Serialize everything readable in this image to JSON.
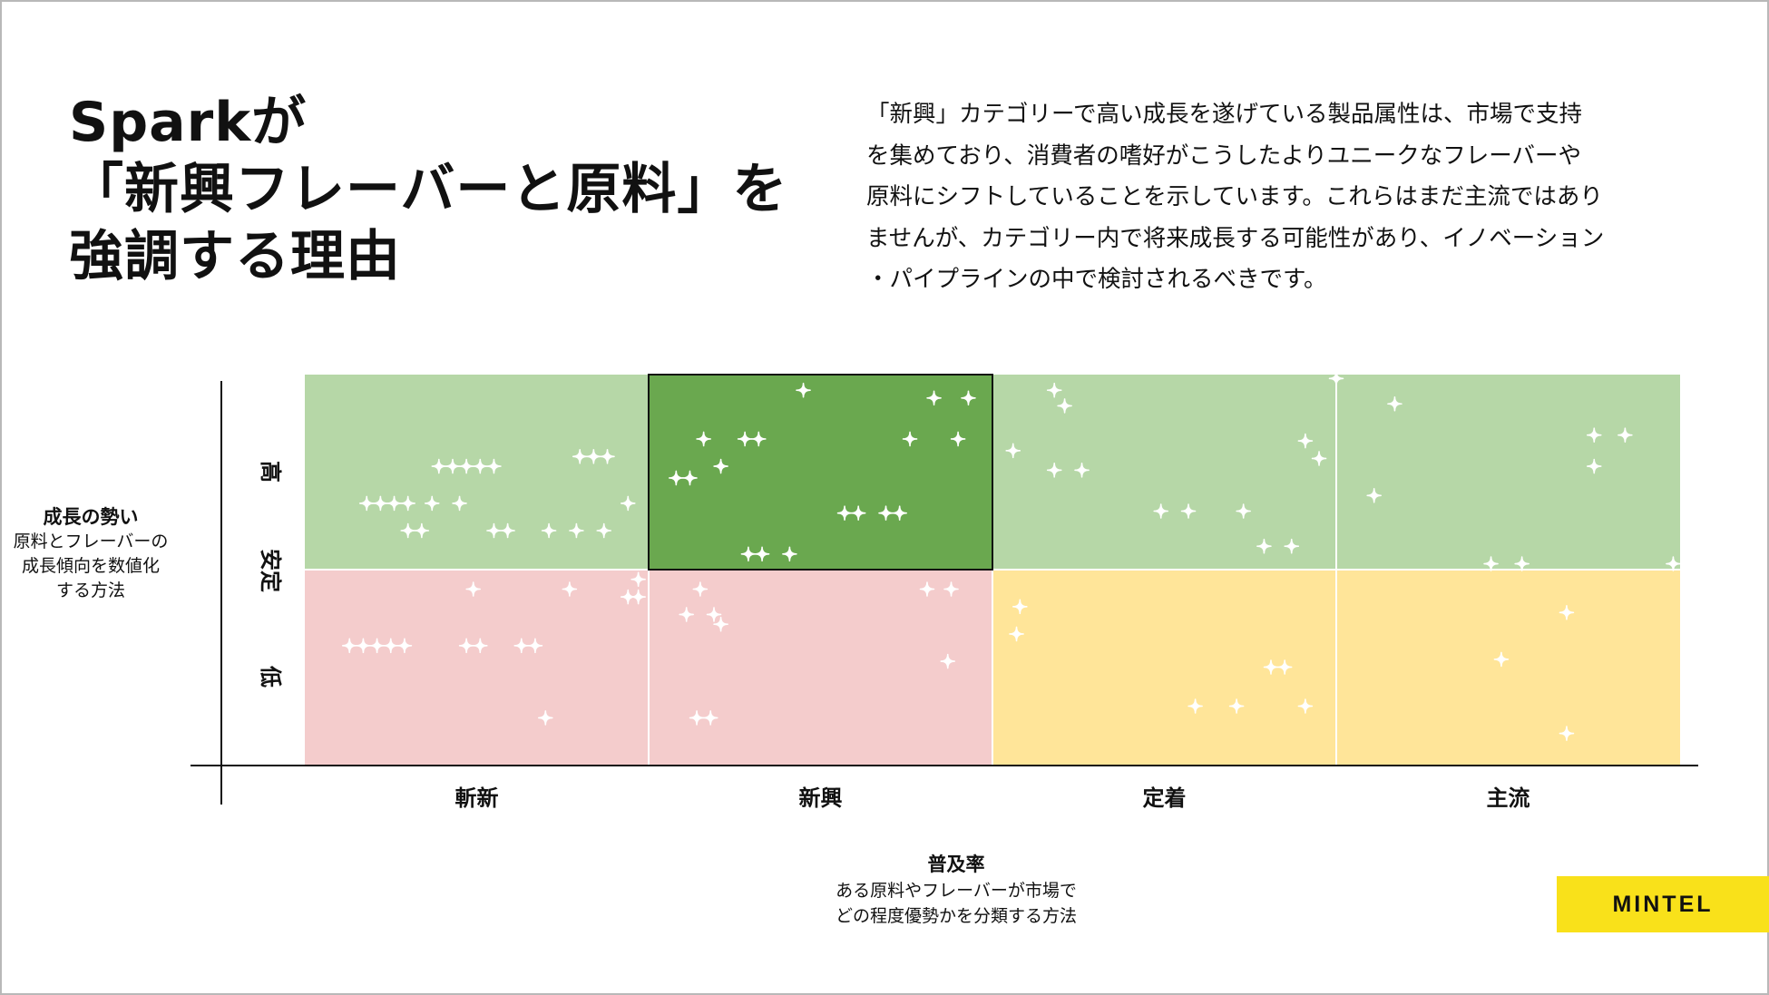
{
  "title_lines": [
    "Sparkが",
    "「新興フレーバーと原料」を",
    "強調する理由"
  ],
  "description": "「新興」カテゴリーで高い成長を遂げている製品属性は、市場で支持\nを集めており、消費者の嗜好がこうしたよりユニークなフレーバーや\n原料にシフトしていることを示しています。これらはまだ主流ではあり\nませんが、カテゴリー内で将来成長する可能性があり、イノベーション\n・パイプラインの中で検討されるべきです。",
  "brand": {
    "label": "MINTEL",
    "color": "#f9e11a"
  },
  "chart_data": {
    "type": "scatter",
    "x_title": "普及率",
    "x_subtitle": "ある原料やフレーバーが市場で\nどの程度優勢かを分類する方法",
    "y_title": "成長の勢い",
    "y_subtitle": "原料とフレーバーの\n成長傾向を数値化\nする方法",
    "x_categories": [
      "斬新",
      "新興",
      "定着",
      "主流"
    ],
    "y_labels": [
      "高",
      "安定",
      "低"
    ],
    "y_groups": [
      "高",
      "低"
    ],
    "highlight_quadrant": {
      "x": "新興",
      "y": "高"
    },
    "colors": {
      "high_green": "#b6d7a7",
      "highlight_green": "#6aa84f",
      "low_red": "#f4cccc",
      "low_yellow": "#ffe599",
      "marker": "#ffffff"
    },
    "quadrant_fill": {
      "斬新|高": "high_green",
      "新興|高": "highlight_green",
      "定着|高": "high_green",
      "主流|高": "high_green",
      "斬新|低": "low_red",
      "新興|低": "low_red",
      "定着|低": "low_yellow",
      "主流|低": "low_yellow"
    },
    "points": [
      {
        "x": 0.39,
        "y": 0.53
      },
      {
        "x": 0.43,
        "y": 0.53
      },
      {
        "x": 0.47,
        "y": 0.53
      },
      {
        "x": 0.51,
        "y": 0.53
      },
      {
        "x": 0.55,
        "y": 0.53
      },
      {
        "x": 0.8,
        "y": 0.58
      },
      {
        "x": 0.84,
        "y": 0.58
      },
      {
        "x": 0.88,
        "y": 0.58
      },
      {
        "x": 0.18,
        "y": 0.34
      },
      {
        "x": 0.22,
        "y": 0.34
      },
      {
        "x": 0.26,
        "y": 0.34
      },
      {
        "x": 0.3,
        "y": 0.34
      },
      {
        "x": 0.37,
        "y": 0.34
      },
      {
        "x": 0.45,
        "y": 0.34
      },
      {
        "x": 0.94,
        "y": 0.34
      },
      {
        "x": 0.3,
        "y": 0.2
      },
      {
        "x": 0.34,
        "y": 0.2
      },
      {
        "x": 0.55,
        "y": 0.2
      },
      {
        "x": 0.59,
        "y": 0.2
      },
      {
        "x": 0.71,
        "y": 0.2
      },
      {
        "x": 0.79,
        "y": 0.2
      },
      {
        "x": 0.87,
        "y": 0.2
      },
      {
        "x": 1.45,
        "y": 0.92
      },
      {
        "x": 1.83,
        "y": 0.88
      },
      {
        "x": 1.93,
        "y": 0.88
      },
      {
        "x": 1.16,
        "y": 0.67
      },
      {
        "x": 1.28,
        "y": 0.67
      },
      {
        "x": 1.32,
        "y": 0.67
      },
      {
        "x": 1.76,
        "y": 0.67
      },
      {
        "x": 1.9,
        "y": 0.67
      },
      {
        "x": 1.21,
        "y": 0.53
      },
      {
        "x": 1.08,
        "y": 0.47
      },
      {
        "x": 1.12,
        "y": 0.47
      },
      {
        "x": 1.57,
        "y": 0.29
      },
      {
        "x": 1.61,
        "y": 0.29
      },
      {
        "x": 1.69,
        "y": 0.29
      },
      {
        "x": 1.73,
        "y": 0.29
      },
      {
        "x": 1.29,
        "y": 0.08
      },
      {
        "x": 1.33,
        "y": 0.08
      },
      {
        "x": 1.41,
        "y": 0.08
      },
      {
        "x": 2.18,
        "y": 0.92
      },
      {
        "x": 2.21,
        "y": 0.84
      },
      {
        "x": 2.06,
        "y": 0.61
      },
      {
        "x": 2.18,
        "y": 0.51
      },
      {
        "x": 2.26,
        "y": 0.51
      },
      {
        "x": 2.49,
        "y": 0.3
      },
      {
        "x": 2.57,
        "y": 0.3
      },
      {
        "x": 2.73,
        "y": 0.3
      },
      {
        "x": 2.79,
        "y": 0.12
      },
      {
        "x": 2.87,
        "y": 0.12
      },
      {
        "x": 2.91,
        "y": 0.66
      },
      {
        "x": 2.95,
        "y": 0.57
      },
      {
        "x": 3.0,
        "y": 0.98
      },
      {
        "x": 3.17,
        "y": 0.85
      },
      {
        "x": 3.11,
        "y": 0.38
      },
      {
        "x": 3.45,
        "y": 0.03
      },
      {
        "x": 3.54,
        "y": 0.03
      },
      {
        "x": 3.75,
        "y": 0.69
      },
      {
        "x": 3.75,
        "y": 0.53
      },
      {
        "x": 3.84,
        "y": 0.69
      },
      {
        "x": 3.98,
        "y": 0.03
      },
      {
        "x": 0.49,
        "y": -0.1
      },
      {
        "x": 0.77,
        "y": -0.1
      },
      {
        "x": 0.94,
        "y": -0.14
      },
      {
        "x": 0.97,
        "y": -0.14
      },
      {
        "x": 0.97,
        "y": -0.05
      },
      {
        "x": 0.13,
        "y": -0.39
      },
      {
        "x": 0.17,
        "y": -0.39
      },
      {
        "x": 0.21,
        "y": -0.39
      },
      {
        "x": 0.25,
        "y": -0.39
      },
      {
        "x": 0.29,
        "y": -0.39
      },
      {
        "x": 0.47,
        "y": -0.39
      },
      {
        "x": 0.51,
        "y": -0.39
      },
      {
        "x": 0.63,
        "y": -0.39
      },
      {
        "x": 0.67,
        "y": -0.39
      },
      {
        "x": 0.7,
        "y": -0.76
      },
      {
        "x": 1.15,
        "y": -0.1
      },
      {
        "x": 1.19,
        "y": -0.23
      },
      {
        "x": 1.11,
        "y": -0.23
      },
      {
        "x": 1.21,
        "y": -0.28
      },
      {
        "x": 1.81,
        "y": -0.1
      },
      {
        "x": 1.88,
        "y": -0.1
      },
      {
        "x": 1.87,
        "y": -0.47
      },
      {
        "x": 1.14,
        "y": -0.76
      },
      {
        "x": 1.18,
        "y": -0.76
      },
      {
        "x": 2.08,
        "y": -0.19
      },
      {
        "x": 2.07,
        "y": -0.33
      },
      {
        "x": 2.59,
        "y": -0.7
      },
      {
        "x": 2.71,
        "y": -0.7
      },
      {
        "x": 2.81,
        "y": -0.5
      },
      {
        "x": 2.85,
        "y": -0.5
      },
      {
        "x": 2.91,
        "y": -0.7
      },
      {
        "x": 3.67,
        "y": -0.22
      },
      {
        "x": 3.48,
        "y": -0.46
      },
      {
        "x": 3.67,
        "y": -0.84
      }
    ]
  }
}
